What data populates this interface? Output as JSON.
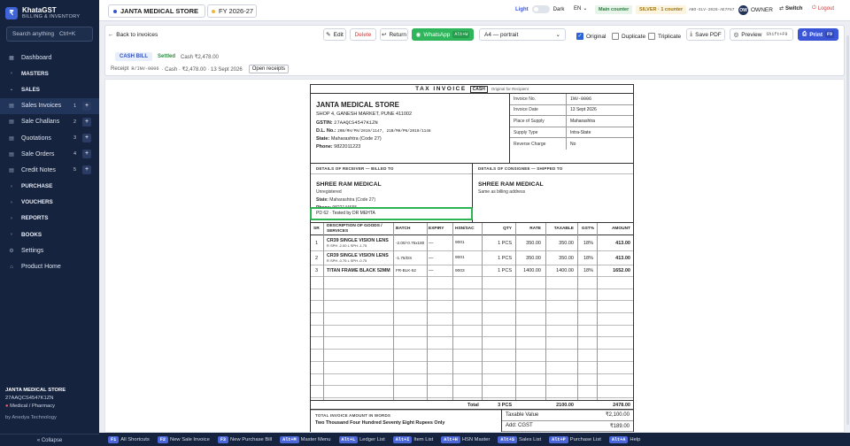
{
  "app": {
    "name": "KhataGST",
    "subtitle": "BILLING & INVENTORY",
    "logo_letter": "₹"
  },
  "search": {
    "placeholder": "Search anything",
    "shortcut": "Ctrl+K"
  },
  "sidebar": {
    "items": [
      {
        "label": "Dashboard",
        "icon": "grid-icon",
        "type": "item"
      },
      {
        "label": "MASTERS",
        "icon": "chevron-right-icon",
        "type": "header"
      },
      {
        "label": "SALES",
        "icon": "chevron-down-icon",
        "type": "header"
      },
      {
        "label": "Sales Invoices",
        "icon": "doc-icon",
        "type": "item",
        "count": "1",
        "selected": true
      },
      {
        "label": "Sale Challans",
        "icon": "doc-icon",
        "type": "item",
        "count": "2"
      },
      {
        "label": "Quotations",
        "icon": "doc-icon",
        "type": "item",
        "count": "3"
      },
      {
        "label": "Sale Orders",
        "icon": "doc-icon",
        "type": "item",
        "count": "4"
      },
      {
        "label": "Credit Notes",
        "icon": "doc-icon",
        "type": "item",
        "count": "5"
      },
      {
        "label": "PURCHASE",
        "icon": "chevron-right-icon",
        "type": "header"
      },
      {
        "label": "VOUCHERS",
        "icon": "chevron-right-icon",
        "type": "header"
      },
      {
        "label": "REPORTS",
        "icon": "chevron-right-icon",
        "type": "header"
      },
      {
        "label": "BOOKS",
        "icon": "chevron-right-icon",
        "type": "header"
      },
      {
        "label": "Settings",
        "icon": "gear-icon",
        "type": "item"
      },
      {
        "label": "Product Home",
        "icon": "home-icon",
        "type": "item"
      }
    ],
    "footer": {
      "shop": "JANTA MEDICAL STORE",
      "gstin": "27AAQCS4547K1ZN",
      "category": "Medical / Pharmacy",
      "by": "by Anedya Technology",
      "collapse": "« Collapse"
    }
  },
  "topbar": {
    "shop": "JANTA MEDICAL STORE",
    "fy": "FY 2026-27",
    "light": "Light",
    "dark": "Dark",
    "lang": "EN",
    "main_counter": "Main counter",
    "plan": "SILVER · 1 counter",
    "key": "ANO-SLV-2026-AE7F87",
    "avatar": "OW",
    "user": "OWNER",
    "switch": "Switch",
    "logout": "Logout"
  },
  "actions": {
    "back": "Back to invoices",
    "edit": "Edit",
    "delete": "Delete",
    "ret": "Return",
    "whatsapp": "WhatsApp",
    "whatsapp_key": "Alt+W",
    "paper": "A4 — portrait",
    "original": "Original",
    "duplicate": "Duplicate",
    "triplicate": "Triplicate",
    "save_pdf": "Save PDF",
    "preview": "Preview",
    "preview_key": "Shift+F9",
    "print": "Print",
    "print_key": "F9"
  },
  "info": {
    "cash_bill": "CASH BILL",
    "status": "Settled",
    "cash_amount": "Cash ₹2,478.00",
    "receipt": "Receipt",
    "receipt_no": "R/INV-0006",
    "receipt_detail": "· Cash · ₹2,478.00 · 13 Sept 2026",
    "open_receipts": "Open receipts"
  },
  "invoice": {
    "title": "TAX INVOICE",
    "cash_tag": "CASH",
    "copy": "Original for Recipient",
    "shop": {
      "name": "JANTA MEDICAL STORE",
      "address": "SHOP 4, GANESH MARKET, PUNE 411002",
      "gstin_label": "GSTIN:",
      "gstin": "27AAQCS4547K1ZN",
      "dl_label": "D.L. No.:",
      "dl": "20B/MH/PN/2019/1147, 21B/MH/PN/2019/1148",
      "state_label": "State:",
      "state": "Maharashtra (Code 27)",
      "phone_label": "Phone:",
      "phone": "9822011223"
    },
    "meta": [
      {
        "k": "Invoice No.",
        "v": "INV-0006"
      },
      {
        "k": "Invoice Date",
        "v": "13 Sept 2026"
      },
      {
        "k": "Place of Supply",
        "v": "Maharashtra"
      },
      {
        "k": "Supply Type",
        "v": "Intra-State"
      },
      {
        "k": "Reverse Charge",
        "v": "No"
      }
    ],
    "receiver": {
      "header": "DETAILS OF RECEIVER — BILLED TO",
      "name": "SHREE RAM MEDICAL",
      "reg": "Unregistered",
      "state_label": "State:",
      "state": "Maharashtra (Code 27)",
      "phone_label": "Phone:",
      "phone": "9822144655",
      "rx": "PD 62 · Tested by DR MEHTA"
    },
    "consignee": {
      "header": "DETAILS OF CONSIGNEE — SHIPPED TO",
      "name": "SHREE RAM MEDICAL",
      "note": "Same as billing address"
    },
    "cols": {
      "sr": "SR",
      "desc": "DESCRIPTION OF GOODS / SERVICES",
      "batch": "BATCH",
      "expiry": "EXPIRY",
      "hsn": "HSN/SAC",
      "qty": "QTY",
      "rate": "RATE",
      "taxable": "TAXABLE",
      "gst": "GST%",
      "amount": "AMOUNT"
    },
    "rows": [
      {
        "sr": "1",
        "desc": "CR39 SINGLE VISION LENS",
        "sub": "R SPH -2.00 L SPH -1.75",
        "batch": "-2.00/-0.75x180",
        "expiry": "—",
        "hsn": "9001",
        "qty": "1 PCS",
        "rate": "350.00",
        "taxable": "350.00",
        "gst": "18%",
        "amount": "413.00"
      },
      {
        "sr": "2",
        "desc": "CR39 SINGLE VISION LENS",
        "sub": "R SPH -0.75 L SPH -0.75",
        "batch": "-1.75/DS",
        "expiry": "—",
        "hsn": "9001",
        "qty": "1 PCS",
        "rate": "350.00",
        "taxable": "350.00",
        "gst": "18%",
        "amount": "413.00"
      },
      {
        "sr": "3",
        "desc": "TITAN FRAME BLACK 52MM",
        "sub": "",
        "batch": "FR-BLK-52",
        "expiry": "—",
        "hsn": "9003",
        "qty": "1 PCS",
        "rate": "1400.00",
        "taxable": "1400.00",
        "gst": "18%",
        "amount": "1652.00"
      }
    ],
    "total": {
      "label": "Total",
      "qty": "3 PCS",
      "taxable": "2100.00",
      "amount": "2478.00"
    },
    "words_header": "TOTAL INVOICE AMOUNT IN WORDS",
    "words": "Two Thousand Four Hundred Seventy Eight Rupees Only",
    "summary": [
      {
        "k": "Taxable Value",
        "v": "₹2,100.00"
      },
      {
        "k": "Add: CGST",
        "v": "₹189.00"
      }
    ]
  },
  "footer": {
    "shortcuts": [
      {
        "key": "F1",
        "label": "All Shortcuts"
      },
      {
        "key": "F2",
        "label": "New Sale Invoice"
      },
      {
        "key": "F3",
        "label": "New Purchase Bill"
      },
      {
        "key": "Alt+M",
        "label": "Master Menu"
      },
      {
        "key": "Alt+L",
        "label": "Ledger List"
      },
      {
        "key": "Alt+I",
        "label": "Item List"
      },
      {
        "key": "Alt+H",
        "label": "HSN Master"
      },
      {
        "key": "Alt+S",
        "label": "Sales List"
      },
      {
        "key": "Alt+P",
        "label": "Purchase List"
      },
      {
        "key": "Alt+A",
        "label": "Help"
      }
    ]
  }
}
